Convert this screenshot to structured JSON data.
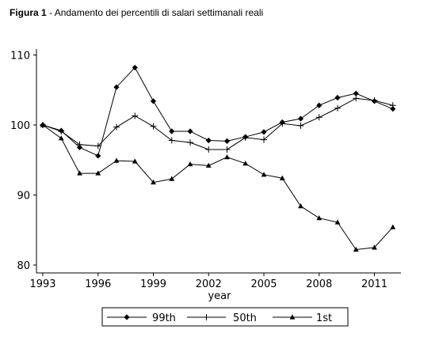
{
  "caption": {
    "prefix": "Figura 1",
    "text": " - Andamento dei percentili di salari settimanali reali"
  },
  "chart_data": {
    "type": "line",
    "xlabel": "year",
    "ylabel": "",
    "x": [
      1993,
      1994,
      1995,
      1996,
      1997,
      1998,
      1999,
      2000,
      2001,
      2002,
      2003,
      2004,
      2005,
      2006,
      2007,
      2008,
      2009,
      2010,
      2011,
      2012
    ],
    "xlim": [
      1993,
      2012.4
    ],
    "ylim": [
      79.2,
      110.4
    ],
    "xticks": [
      "1993",
      "1996",
      "1999",
      "2002",
      "2005",
      "2008",
      "2011"
    ],
    "yticks": [
      "80",
      "90",
      "100",
      "110"
    ],
    "grid": false,
    "legend_position": "bottom",
    "series": [
      {
        "name": "99th",
        "marker": "diamond",
        "values": [
          100,
          99.2,
          96.8,
          95.6,
          105.4,
          108.2,
          103.4,
          99.1,
          99.1,
          97.8,
          97.7,
          98.3,
          99.0,
          100.4,
          100.9,
          102.8,
          103.9,
          104.5,
          103.4,
          102.3
        ]
      },
      {
        "name": "50th",
        "marker": "plus",
        "values": [
          100,
          99.1,
          97.2,
          97.0,
          99.7,
          101.3,
          99.8,
          97.8,
          97.5,
          96.5,
          96.5,
          98.2,
          97.9,
          100.2,
          99.9,
          101.1,
          102.4,
          103.8,
          103.5,
          102.8
        ]
      },
      {
        "name": "1st",
        "marker": "triangle",
        "values": [
          100,
          98.1,
          93.1,
          93.1,
          94.9,
          94.8,
          91.8,
          92.3,
          94.4,
          94.2,
          95.4,
          94.5,
          92.9,
          92.4,
          88.4,
          86.7,
          86.1,
          82.2,
          82.5,
          85.4
        ]
      }
    ]
  }
}
